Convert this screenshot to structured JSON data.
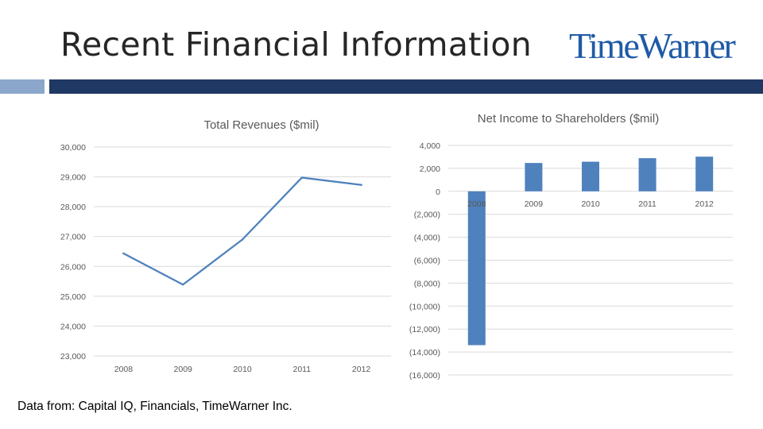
{
  "header": {
    "title": "Recent Financial Information",
    "logo_text": "TimeWarner",
    "logo_color": "#1f5aa6",
    "band_color": "#1f3864",
    "band_accent_color": "#8ba7cc"
  },
  "footer": {
    "source": "Data from: Capital IQ, Financials, TimeWarner Inc."
  },
  "chart_data": [
    {
      "type": "line",
      "title": "Total Revenues ($mil)",
      "xlabel": "",
      "ylabel": "",
      "categories": [
        "2008",
        "2009",
        "2010",
        "2011",
        "2012"
      ],
      "series": [
        {
          "values": [
            26434,
            25388,
            26899,
            28974,
            28729
          ],
          "color": "#4f81bd"
        }
      ],
      "ylim": [
        23000,
        30000
      ],
      "ytick_labels": [
        "23,000",
        "24,000",
        "25,000",
        "26,000",
        "27,000",
        "28,000",
        "29,000",
        "30,000"
      ],
      "grid": true,
      "legend": "none"
    },
    {
      "type": "bar",
      "title": "Net Income to Shareholders ($mil)",
      "xlabel": "",
      "ylabel": "",
      "categories": [
        "2008",
        "2009",
        "2010",
        "2011",
        "2012"
      ],
      "series": [
        {
          "values": [
            -13402,
            2468,
            2578,
            2886,
            3019
          ],
          "color": "#4f81bd"
        }
      ],
      "ylim": [
        -16000,
        4000
      ],
      "ytick_labels": [
        "(16,000)",
        "(14,000)",
        "(12,000)",
        "(10,000)",
        "(8,000)",
        "(6,000)",
        "(4,000)",
        "(2,000)",
        "0",
        "2,000",
        "4,000"
      ],
      "grid": true,
      "legend": "none"
    }
  ]
}
